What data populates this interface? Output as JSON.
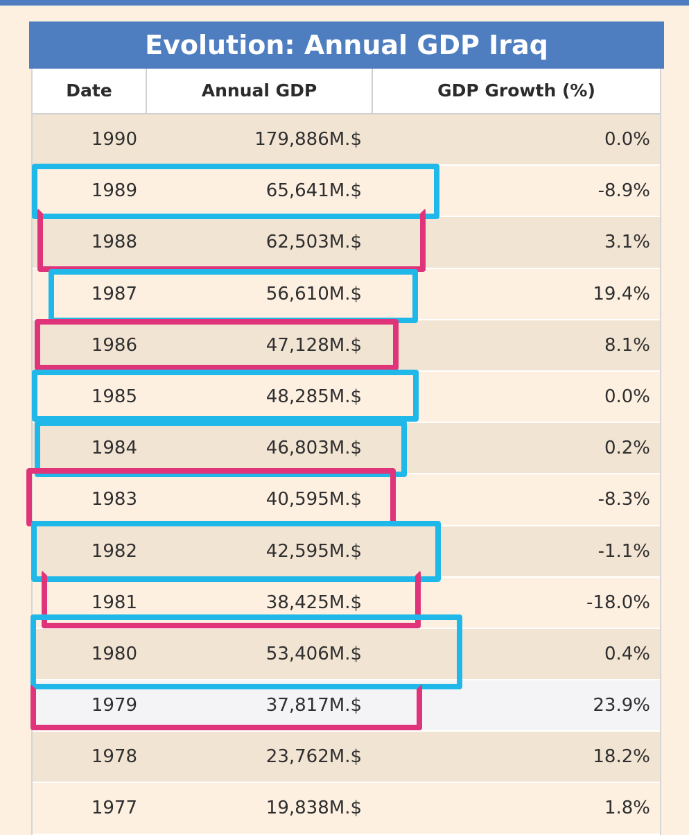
{
  "title": "Evolution: Annual GDP Iraq",
  "columns": {
    "date": "Date",
    "gdp": "Annual GDP",
    "growth": "GDP Growth (%)"
  },
  "rows": [
    {
      "date": "1990",
      "gdp": "179,886M.$",
      "growth": "0.0%"
    },
    {
      "date": "1989",
      "gdp": "65,641M.$",
      "growth": "-8.9%"
    },
    {
      "date": "1988",
      "gdp": "62,503M.$",
      "growth": "3.1%"
    },
    {
      "date": "1987",
      "gdp": "56,610M.$",
      "growth": "19.4%"
    },
    {
      "date": "1986",
      "gdp": "47,128M.$",
      "growth": "8.1%"
    },
    {
      "date": "1985",
      "gdp": "48,285M.$",
      "growth": "0.0%"
    },
    {
      "date": "1984",
      "gdp": "46,803M.$",
      "growth": "0.2%"
    },
    {
      "date": "1983",
      "gdp": "40,595M.$",
      "growth": "-8.3%"
    },
    {
      "date": "1982",
      "gdp": "42,595M.$",
      "growth": "-1.1%"
    },
    {
      "date": "1981",
      "gdp": "38,425M.$",
      "growth": "-18.0%"
    },
    {
      "date": "1980",
      "gdp": "53,406M.$",
      "growth": "0.4%"
    },
    {
      "date": "1979",
      "gdp": "37,817M.$",
      "growth": "23.9%"
    },
    {
      "date": "1978",
      "gdp": "23,762M.$",
      "growth": "18.2%"
    },
    {
      "date": "1977",
      "gdp": "19,838M.$",
      "growth": "1.8%"
    }
  ],
  "colors": {
    "header_blue": "#4f7ec0",
    "highlight_blue": "#1fb8e8",
    "highlight_pink": "#e0347a"
  }
}
